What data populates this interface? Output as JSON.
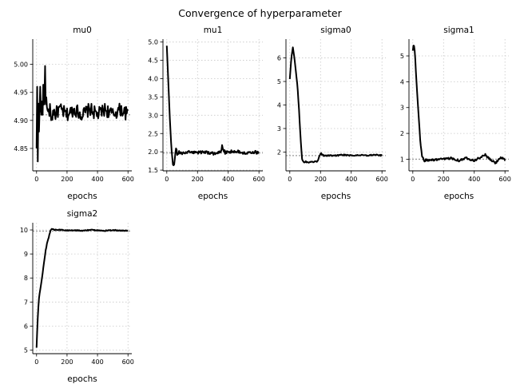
{
  "title": "Convergence of hyperparameter",
  "chart_data": [
    {
      "type": "line",
      "title": "mu0",
      "xlabel": "epochs",
      "xlim": [
        -25,
        625
      ],
      "ylim": [
        4.81,
        5.045
      ],
      "xticks": [
        0,
        200,
        400,
        600
      ],
      "yticks": [
        4.85,
        4.9,
        4.95,
        5.0
      ],
      "ytick_labels": [
        "4.85",
        "4.90",
        "4.95",
        "5.00"
      ],
      "reference": 4.91,
      "grid": true,
      "x": [
        0,
        3,
        6,
        9,
        12,
        15,
        20,
        25,
        30,
        35,
        40,
        45,
        50,
        55,
        60,
        65,
        70,
        75,
        80,
        90,
        100,
        110,
        120,
        150,
        200,
        250,
        300,
        350,
        400,
        450,
        500,
        550,
        600
      ],
      "y": [
        4.85,
        5.02,
        4.84,
        4.82,
        4.93,
        4.87,
        4.92,
        4.97,
        4.89,
        4.94,
        4.91,
        4.97,
        4.9,
        5.03,
        4.92,
        4.95,
        4.9,
        4.93,
        4.91,
        4.92,
        4.9,
        4.92,
        4.91,
        4.92,
        4.91,
        4.92,
        4.91,
        4.92,
        4.91,
        4.92,
        4.91,
        4.92,
        4.91
      ],
      "noise": 0.012
    },
    {
      "type": "line",
      "title": "mu1",
      "xlabel": "epochs",
      "xlim": [
        -25,
        625
      ],
      "ylim": [
        1.48,
        5.08
      ],
      "xticks": [
        0,
        200,
        400,
        600
      ],
      "yticks": [
        1.5,
        2.0,
        2.5,
        3.0,
        3.5,
        4.0,
        4.5,
        5.0
      ],
      "ytick_labels": [
        "1.5",
        "2.0",
        "2.5",
        "3.0",
        "3.5",
        "4.0",
        "4.5",
        "5.0"
      ],
      "reference": 1.97,
      "grid": true,
      "x": [
        0,
        10,
        20,
        30,
        40,
        50,
        60,
        70,
        80,
        100,
        150,
        200,
        250,
        300,
        350,
        360,
        380,
        400,
        450,
        500,
        550,
        600
      ],
      "y": [
        4.9,
        3.9,
        2.9,
        2.1,
        1.65,
        1.7,
        2.1,
        1.9,
        2.0,
        1.95,
        2.0,
        1.98,
        2.0,
        1.95,
        2.0,
        2.15,
        1.97,
        2.0,
        2.02,
        1.97,
        2.0,
        1.98
      ],
      "noise": 0.04
    },
    {
      "type": "line",
      "title": "sigma0",
      "xlabel": "epochs",
      "xlim": [
        -25,
        625
      ],
      "ylim": [
        1.2,
        6.8
      ],
      "xticks": [
        0,
        200,
        400,
        600
      ],
      "yticks": [
        2,
        3,
        4,
        5,
        6
      ],
      "ytick_labels": [
        "2",
        "3",
        "4",
        "5",
        "6"
      ],
      "reference": 1.85,
      "grid": true,
      "x": [
        0,
        10,
        20,
        30,
        40,
        50,
        60,
        70,
        80,
        90,
        100,
        120,
        150,
        180,
        200,
        220,
        260,
        300,
        350,
        400,
        450,
        500,
        550,
        600
      ],
      "y": [
        5.1,
        6.0,
        6.45,
        6.0,
        5.4,
        4.8,
        3.8,
        2.6,
        1.7,
        1.55,
        1.6,
        1.55,
        1.58,
        1.6,
        1.95,
        1.85,
        1.85,
        1.85,
        1.88,
        1.85,
        1.87,
        1.85,
        1.88,
        1.85
      ],
      "noise": 0.025
    },
    {
      "type": "line",
      "title": "sigma1",
      "xlabel": "epochs",
      "xlim": [
        -25,
        625
      ],
      "ylim": [
        0.55,
        5.65
      ],
      "xticks": [
        0,
        200,
        400,
        600
      ],
      "yticks": [
        1,
        2,
        3,
        4,
        5
      ],
      "ytick_labels": [
        "1",
        "2",
        "3",
        "4",
        "5"
      ],
      "reference": 1.0,
      "grid": true,
      "x": [
        0,
        5,
        10,
        15,
        20,
        30,
        40,
        50,
        60,
        70,
        75,
        80,
        90,
        100,
        150,
        200,
        250,
        300,
        350,
        400,
        450,
        470,
        500,
        540,
        560,
        580,
        600
      ],
      "y": [
        5.2,
        5.45,
        5.35,
        5.0,
        4.4,
        3.4,
        2.5,
        1.6,
        1.1,
        1.0,
        0.88,
        0.95,
        1.0,
        0.95,
        0.98,
        1.0,
        1.05,
        0.95,
        1.05,
        0.95,
        1.1,
        1.18,
        1.0,
        0.85,
        1.02,
        1.05,
        0.95
      ],
      "noise": 0.04
    },
    {
      "type": "line",
      "title": "sigma2",
      "xlabel": "epochs",
      "xlim": [
        -25,
        625
      ],
      "ylim": [
        4.85,
        10.3
      ],
      "xticks": [
        0,
        200,
        400,
        600
      ],
      "yticks": [
        5,
        6,
        7,
        8,
        9,
        10
      ],
      "ytick_labels": [
        "5",
        "6",
        "7",
        "8",
        "9",
        "10"
      ],
      "reference": 9.95,
      "grid": true,
      "x": [
        0,
        3,
        6,
        10,
        15,
        20,
        30,
        40,
        50,
        60,
        70,
        80,
        90,
        100,
        120,
        150,
        200,
        250,
        300,
        350,
        400,
        450,
        500,
        550,
        600
      ],
      "y": [
        5.1,
        5.6,
        6.1,
        6.6,
        7.1,
        7.35,
        7.75,
        8.2,
        8.7,
        9.15,
        9.5,
        9.7,
        9.95,
        10.05,
        10.0,
        10.0,
        9.98,
        9.99,
        9.97,
        10.0,
        9.98,
        9.97,
        9.99,
        9.98,
        9.97
      ],
      "noise": 0.02
    }
  ]
}
